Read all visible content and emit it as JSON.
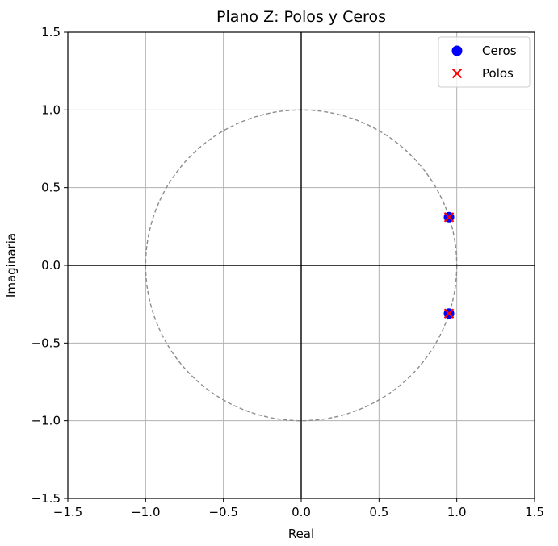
{
  "chart_data": {
    "type": "scatter",
    "title": "Plano Z: Polos y Ceros",
    "xlabel": "Real",
    "ylabel": "Imaginaria",
    "xlim": [
      -1.5,
      1.5
    ],
    "ylim": [
      -1.5,
      1.5
    ],
    "xticks": [
      -1.5,
      -1.0,
      -0.5,
      0.0,
      0.5,
      1.0,
      1.5
    ],
    "yticks": [
      -1.5,
      -1.0,
      -0.5,
      0.0,
      0.5,
      1.0,
      1.5
    ],
    "xtick_labels": [
      "−1.5",
      "−1.0",
      "−0.5",
      "0.0",
      "0.5",
      "1.0",
      "1.5"
    ],
    "ytick_labels": [
      "−1.5",
      "−1.0",
      "−0.5",
      "0.0",
      "0.5",
      "1.0",
      "1.5"
    ],
    "grid": true,
    "unit_circle": {
      "radius": 1,
      "style": "dashed",
      "color": "#8c8c8c"
    },
    "axis_lines": {
      "x0": true,
      "y0": true,
      "color": "#000000"
    },
    "legend": {
      "placement": "top-right"
    },
    "series": [
      {
        "name": "Ceros",
        "marker": "circle",
        "color": "#0000ff",
        "points": [
          {
            "x": 0.95,
            "y": 0.31
          },
          {
            "x": 0.95,
            "y": -0.31
          }
        ]
      },
      {
        "name": "Polos",
        "marker": "x",
        "color": "#ff0000",
        "points": [
          {
            "x": 0.95,
            "y": 0.31
          },
          {
            "x": 0.95,
            "y": -0.31
          }
        ]
      }
    ]
  }
}
